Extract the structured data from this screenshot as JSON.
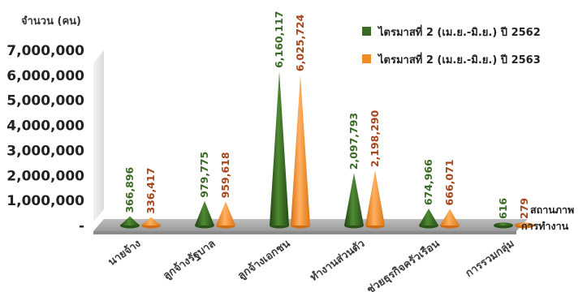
{
  "chart_data": {
    "type": "bar",
    "ylabel": "จำนวน (คน)",
    "xlabel": "สถานภาพการทำงาน",
    "xlabel_lines": [
      "สถานภาพ",
      "การทำงาน"
    ],
    "ylim": [
      0,
      7000000
    ],
    "yticks": [
      "-",
      "1,000,000",
      "2,000,000",
      "3,000,000",
      "4,000,000",
      "5,000,000",
      "6,000,000",
      "7,000,000"
    ],
    "legend_position": "top-right",
    "categories": [
      "นายจ้าง",
      "ลูกจ้างรัฐบาล",
      "ลูกจ้างเอกชน",
      "ทำงานส่วนตัว",
      "ช่วยธุรกิจครัวเรือน",
      "การรวมกลุ่ม"
    ],
    "series": [
      {
        "name": "ไตรมาสที่ 2 (เม.ย.-มิ.ย.) ปี 2562",
        "color": "#3a6b25",
        "values": [
          366896,
          979775,
          6160117,
          2097793,
          674966,
          616
        ],
        "labels": [
          "366,896",
          "979,775",
          "6,160,117",
          "2,097,793",
          "674,966",
          "616"
        ]
      },
      {
        "name": "ไตรมาสที่ 2 (เม.ย.-มิ.ย.) ปี 2563",
        "color": "#f08a24",
        "label_color": "#a8461b",
        "values": [
          336417,
          959618,
          6025724,
          2198290,
          666071,
          279
        ],
        "labels": [
          "336,417",
          "959,618",
          "6,025,724",
          "2,198,290",
          "666,071",
          "279"
        ]
      }
    ]
  }
}
